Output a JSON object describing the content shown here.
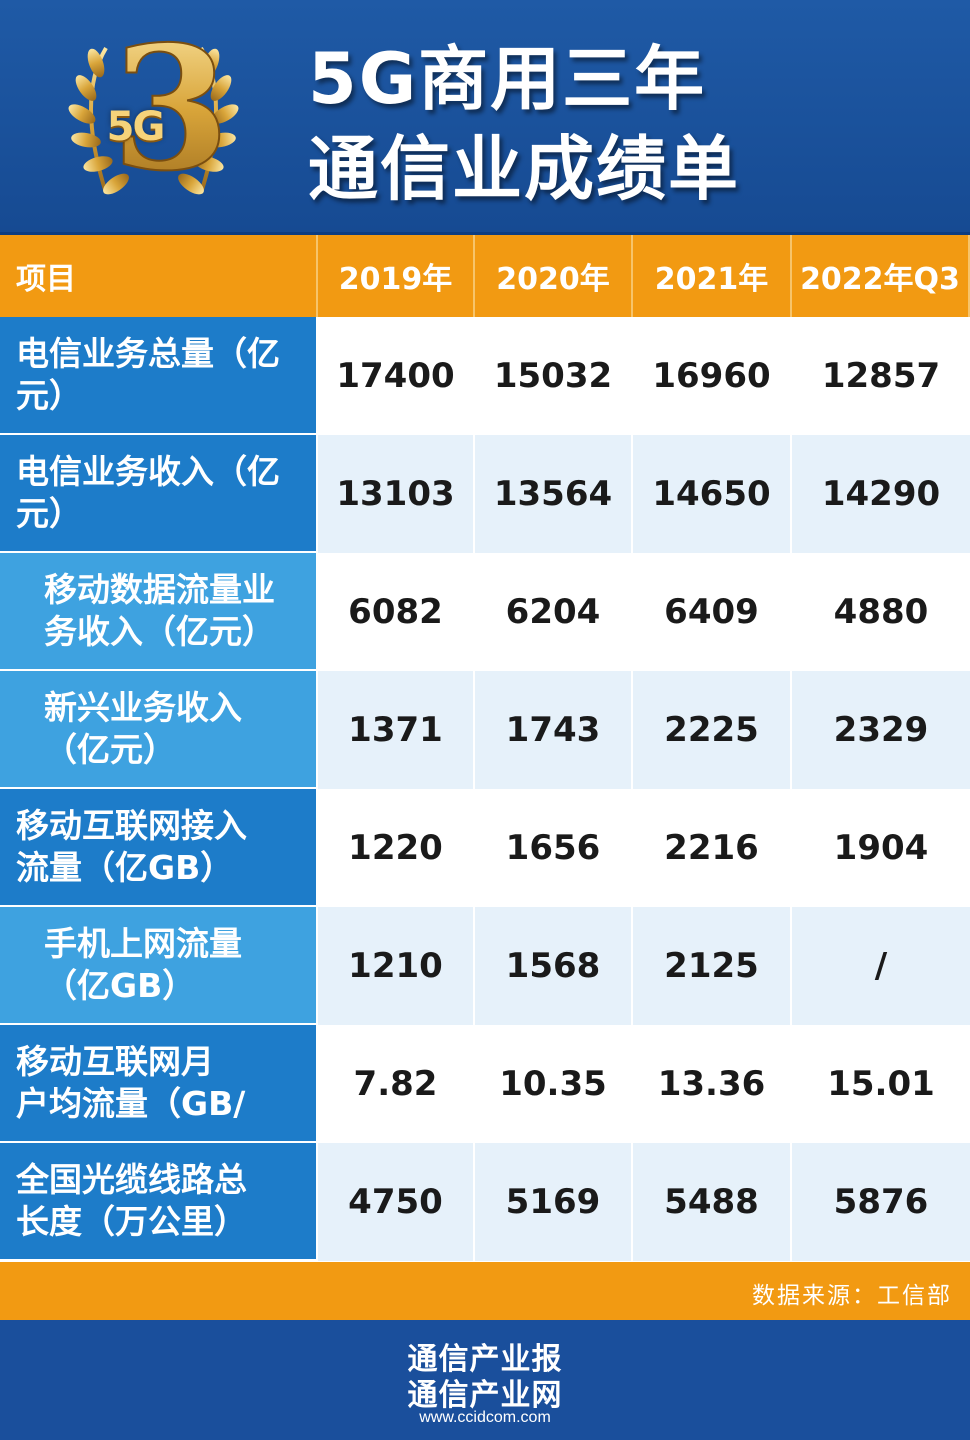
{
  "header": {
    "logo_text": "5G",
    "logo_number": "3",
    "title_line1": "5G商用三年",
    "title_line2": "通信业成绩单"
  },
  "table": {
    "columns": [
      "项目",
      "2019年",
      "2020年",
      "2021年",
      "2022年Q3"
    ],
    "rows": [
      {
        "label": "电信业务总量（亿元）",
        "label_line1": "电信业务总量（亿",
        "label_line2": "元）",
        "level": 1,
        "values": [
          "17400",
          "15032",
          "16960",
          "12857"
        ]
      },
      {
        "label": "电信业务收入（亿元）",
        "label_line1": "电信业务收入（亿",
        "label_line2": "元）",
        "level": 1,
        "values": [
          "13103",
          "13564",
          "14650",
          "14290"
        ]
      },
      {
        "label": "移动数据流量业务收入（亿元）",
        "label_line1": "移动数据流量业",
        "label_line2": "务收入（亿元）",
        "level": 2,
        "values": [
          "6082",
          "6204",
          "6409",
          "4880"
        ]
      },
      {
        "label": "新兴业务收入（亿元）",
        "label_line1": "新兴业务收入",
        "label_line2": "（亿元）",
        "level": 2,
        "values": [
          "1371",
          "1743",
          "2225",
          "2329"
        ]
      },
      {
        "label": "移动互联网接入流量（亿GB）",
        "label_line1": "移动互联网接入",
        "label_line2": "流量（亿GB）",
        "level": 1,
        "values": [
          "1220",
          "1656",
          "2216",
          "1904"
        ]
      },
      {
        "label": "手机上网流量（亿GB）",
        "label_line1": "手机上网流量",
        "label_line2": "（亿GB）",
        "level": 2,
        "values": [
          "1210",
          "1568",
          "2125",
          "/"
        ]
      },
      {
        "label": "移动互联网月户均流量（GB/",
        "label_line1": "移动互联网月",
        "label_line2": "户均流量（GB/",
        "level": 1,
        "values": [
          "7.82",
          "10.35",
          "13.36",
          "15.01"
        ]
      },
      {
        "label": "全国光缆线路总长度（万公里）",
        "label_line1": "全国光缆线路总",
        "label_line2": "长度（万公里）",
        "level": 1,
        "values": [
          "4750",
          "5169",
          "5488",
          "5876"
        ]
      }
    ]
  },
  "source": "数据来源：工信部",
  "footer": {
    "line1": "通信产业报",
    "line2": "通信产业网",
    "url": "www.ccidcom.com"
  },
  "colors": {
    "header_blue": "#1f5aa6",
    "orange": "#f29a12",
    "label_blue": "#1d7cc9",
    "sublabel_blue": "#3ea2e0",
    "alt_row": "#e6f1fa"
  }
}
